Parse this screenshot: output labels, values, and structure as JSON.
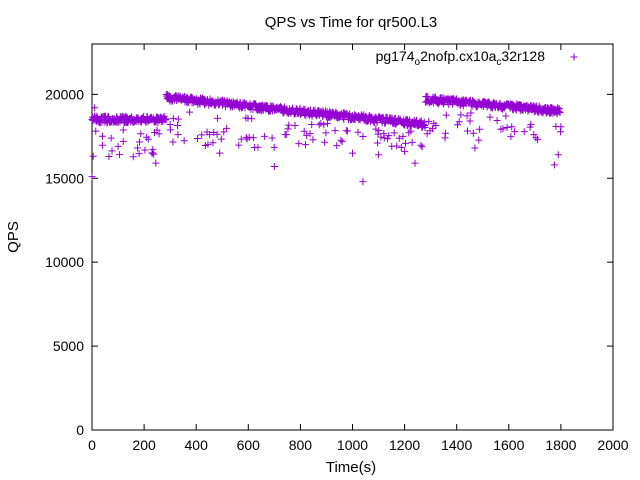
{
  "chart_data": {
    "type": "scatter",
    "title": "QPS vs Time for qr500.L3",
    "xlabel": "Time(s)",
    "ylabel": "QPS",
    "xlim": [
      0,
      2000
    ],
    "ylim": [
      0,
      23000
    ],
    "xticks": [
      "0",
      "200",
      "400",
      "600",
      "800",
      "1000",
      "1200",
      "1400",
      "1600",
      "1800",
      "2000"
    ],
    "yticks": [
      "0",
      "5000",
      "10000",
      "15000",
      "20000"
    ],
    "grid": false,
    "legend_position": "top-right",
    "marker": "+",
    "series": [
      {
        "name": "pg174_o2nofp.cx10a_c32r128",
        "name_parts": [
          "pg174",
          "o",
          "2nofp.cx10a",
          "c",
          "32r128"
        ],
        "color": "#9400d3",
        "phases": [
          {
            "x_range": [
              0,
              285
            ],
            "center": 18500,
            "spread": 400,
            "outlier_low": 16200
          },
          {
            "x_range": [
              285,
              1280
            ],
            "center_start": 19800,
            "center_end": 18200,
            "spread": 400,
            "outlier_low": 16800
          },
          {
            "x_range": [
              1280,
              1800
            ],
            "center_start": 19700,
            "center_end": 19000,
            "spread": 400,
            "outlier_low": 17200
          }
        ],
        "notable_points": [
          {
            "x": 0,
            "y": 15100
          },
          {
            "x": 10,
            "y": 19200
          },
          {
            "x": 40,
            "y": 17500
          },
          {
            "x": 65,
            "y": 16300
          },
          {
            "x": 100,
            "y": 16900
          },
          {
            "x": 120,
            "y": 17200
          },
          {
            "x": 175,
            "y": 16800
          },
          {
            "x": 230,
            "y": 16500
          },
          {
            "x": 245,
            "y": 15900
          },
          {
            "x": 300,
            "y": 18200
          },
          {
            "x": 330,
            "y": 17600
          },
          {
            "x": 490,
            "y": 16500
          },
          {
            "x": 700,
            "y": 15700
          },
          {
            "x": 1000,
            "y": 16500
          },
          {
            "x": 1040,
            "y": 14800
          },
          {
            "x": 1100,
            "y": 16400
          },
          {
            "x": 1200,
            "y": 16600
          },
          {
            "x": 1240,
            "y": 15900
          },
          {
            "x": 1470,
            "y": 16800
          },
          {
            "x": 1775,
            "y": 15800
          },
          {
            "x": 1790,
            "y": 16400
          }
        ]
      }
    ]
  }
}
